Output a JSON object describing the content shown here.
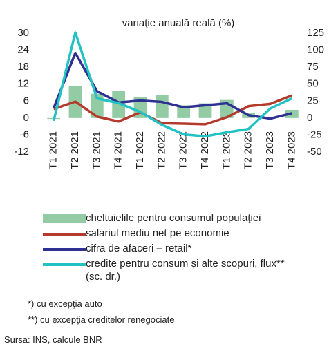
{
  "chart_data": {
    "type": "bar",
    "title": "variaţie anuală reală (%)",
    "categories": [
      "T1 2021",
      "T2 2021",
      "T3 2021",
      "T4 2021",
      "T1 2022",
      "T2 2022",
      "T3 2022",
      "T4 2022",
      "T1 2023",
      "T2 2023",
      "T3 2023",
      "T4 2023"
    ],
    "ylim": [
      -12,
      30
    ],
    "yticks": [
      -12,
      -6,
      0,
      6,
      12,
      18,
      24,
      30
    ],
    "y2lim": [
      -50,
      125
    ],
    "y2ticks": [
      -50,
      -25,
      0,
      25,
      50,
      75,
      100,
      125
    ],
    "series": [
      {
        "name": "cheltuielile pentru consumul populaţiei",
        "type": "bar",
        "color": "#93cca4",
        "values": [
          -0.3,
          11.2,
          8.6,
          9.5,
          7.4,
          8.1,
          4.5,
          5.2,
          6.4,
          1.9,
          0.4,
          2.9
        ]
      },
      {
        "name": "salariul mediu net pe economie",
        "type": "line",
        "color": "#b33a2c",
        "values": [
          3.2,
          5.8,
          0.5,
          -1.2,
          2.0,
          -1.8,
          -2.0,
          -2.2,
          0.3,
          4.2,
          5.0,
          8.0
        ]
      },
      {
        "name": "cifra de afaceri – retail*",
        "type": "line",
        "color": "#2e3192",
        "values": [
          3.5,
          23,
          9.5,
          5.5,
          6.2,
          5.7,
          3.8,
          4.5,
          5.2,
          1.0,
          -0.2,
          1.7
        ]
      },
      {
        "name": "credite pentru consum și alte scopuri, flux** (sc. dr.)",
        "type": "line",
        "axis": "y2",
        "color": "#22c1c3",
        "values": [
          -4,
          126,
          29,
          22,
          9,
          -10,
          -24,
          -27,
          -21,
          -16,
          14,
          29
        ]
      }
    ],
    "footnotes": [
      "*) cu excepţia auto",
      "**) cu excepţia creditelor renegociate"
    ],
    "source": "Sursa: INS, calcule BNR"
  }
}
